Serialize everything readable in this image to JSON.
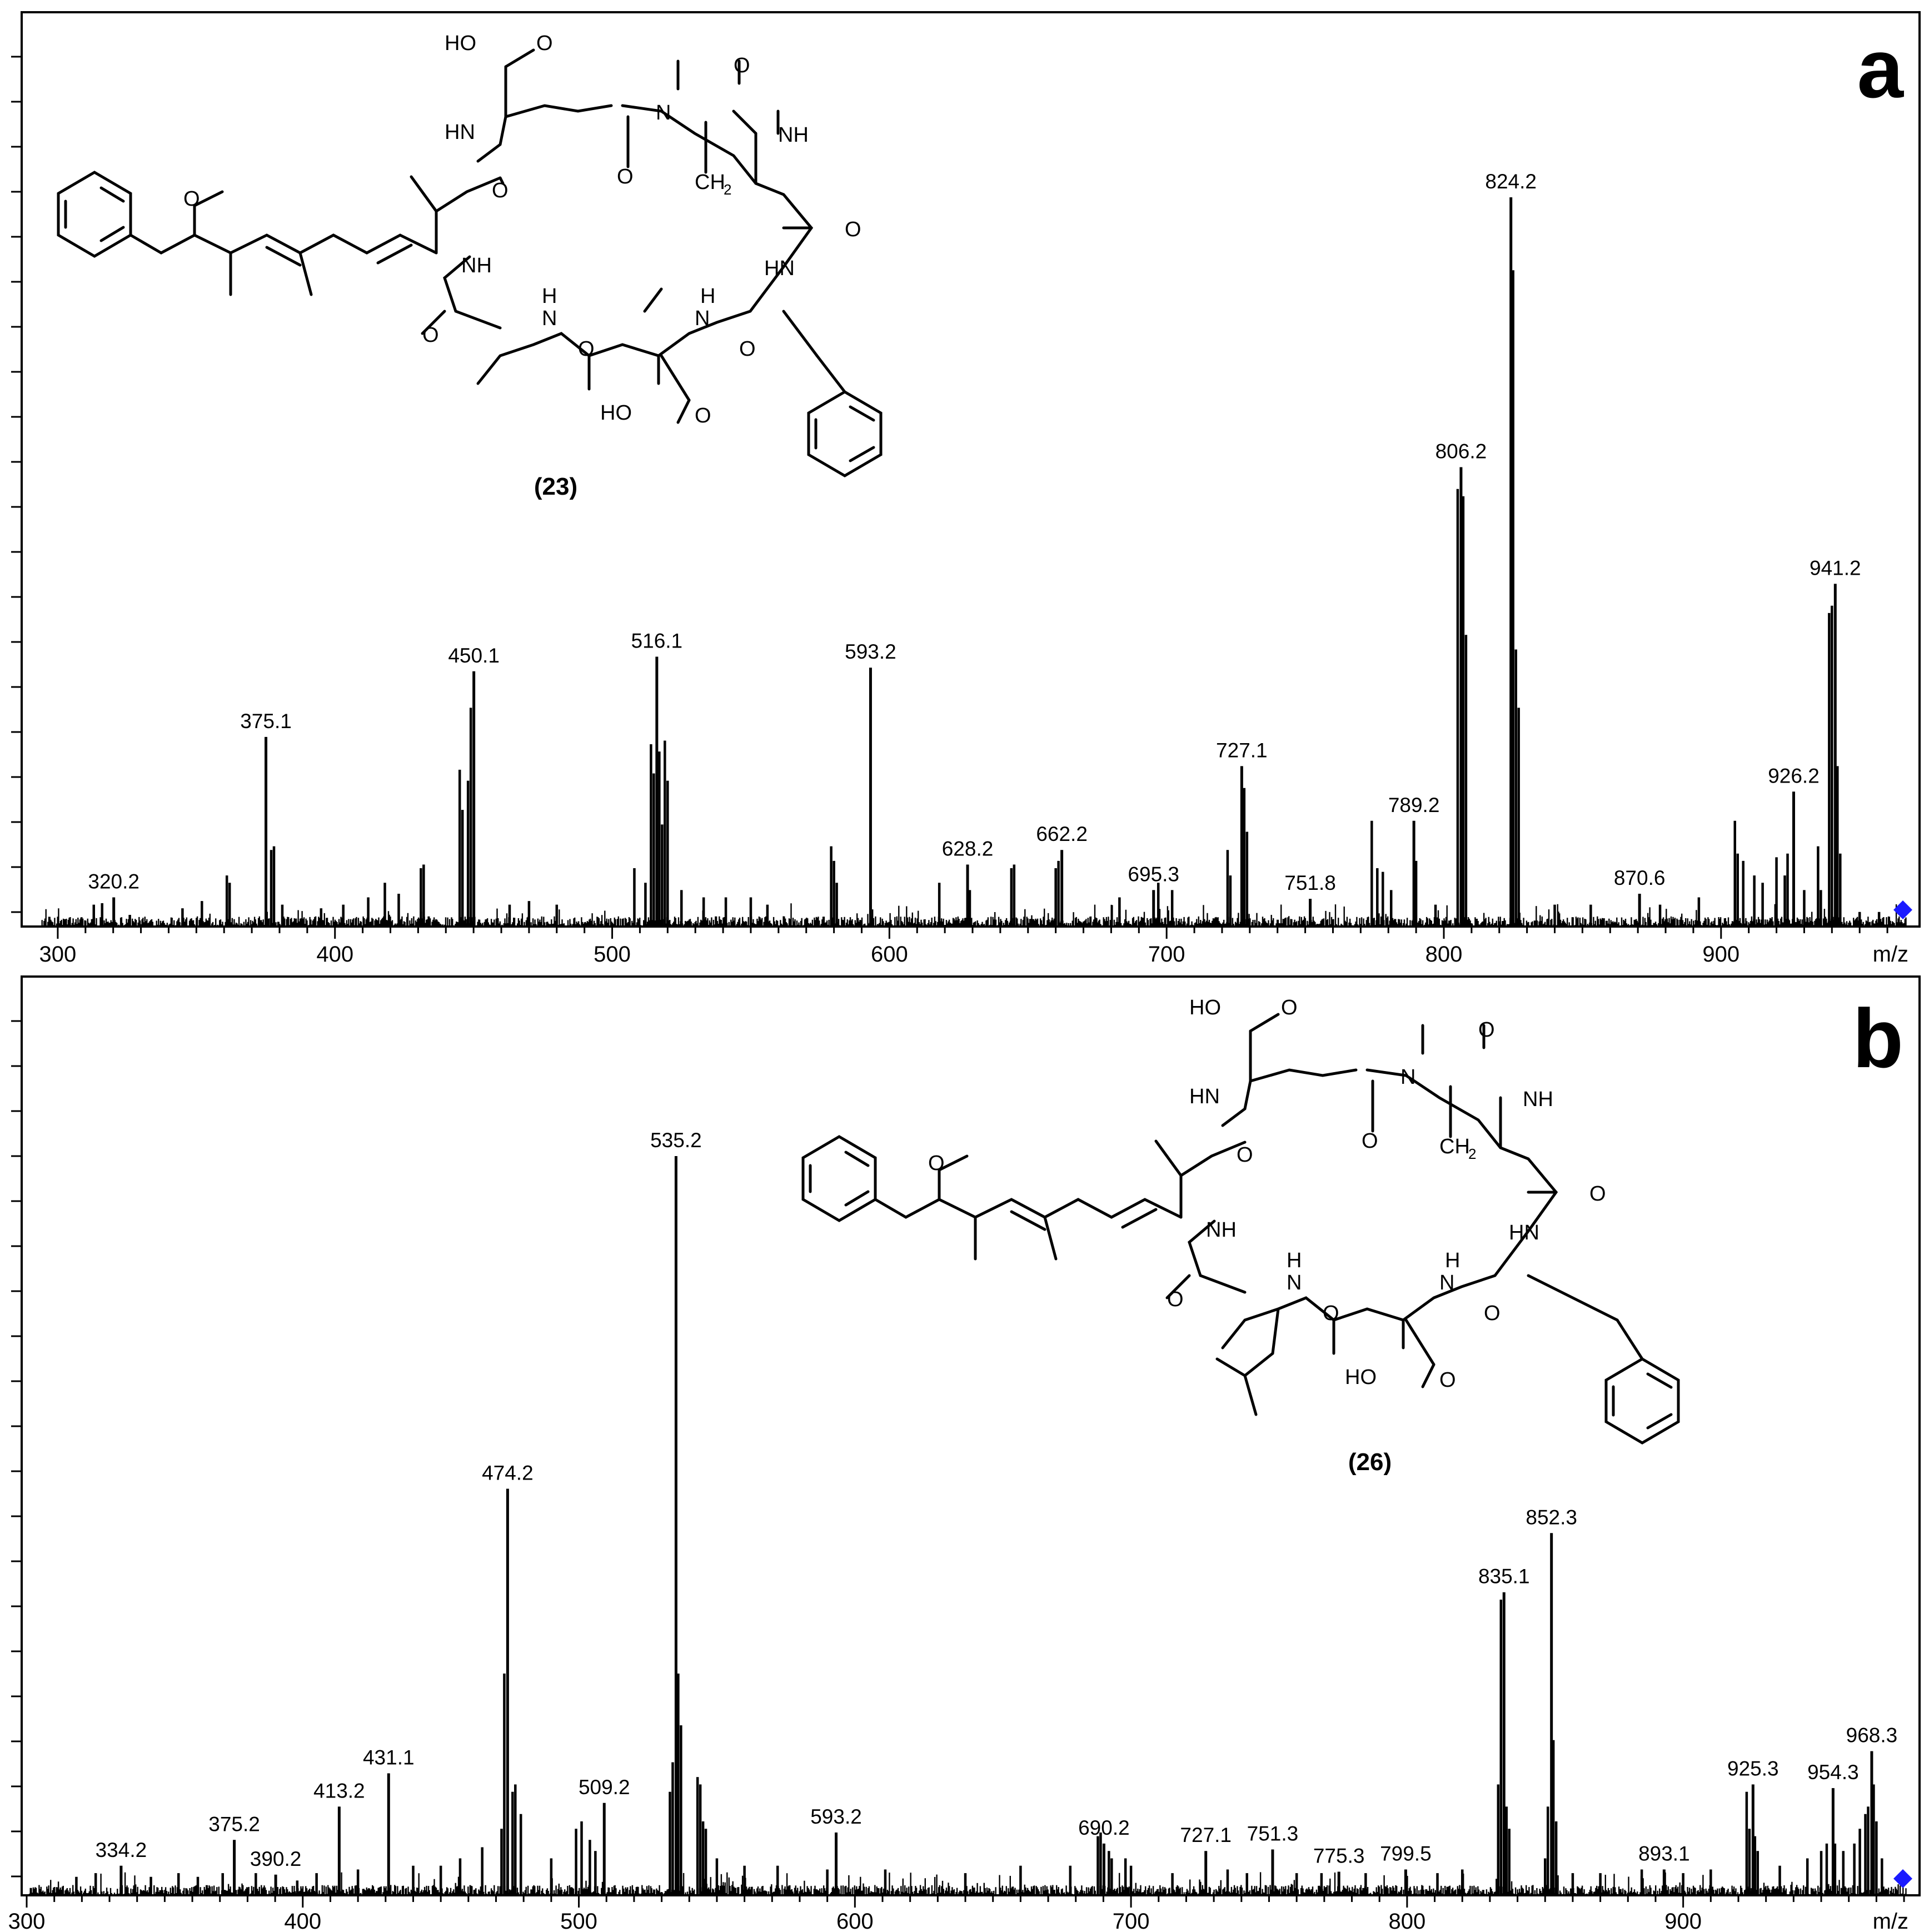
{
  "colors": {
    "frame": "#000000",
    "spectrum": "#000000",
    "marker": "#1a1aff",
    "background": "#ffffff"
  },
  "chart_data": [
    {
      "type": "bar",
      "panel_letter": "a",
      "compound_label": "(23)",
      "xlabel": "m/z",
      "ylabel": "",
      "xlim": [
        293,
        968
      ],
      "ylim": [
        0,
        100
      ],
      "x_ticks": [
        300,
        400,
        500,
        600,
        700,
        800,
        900
      ],
      "grid": false,
      "legend": "none",
      "labeled_peaks": [
        {
          "mz": 320.2,
          "intensity": 4,
          "label": "320.2"
        },
        {
          "mz": 375.1,
          "intensity": 26,
          "label": "375.1"
        },
        {
          "mz": 450.1,
          "intensity": 35,
          "label": "450.1"
        },
        {
          "mz": 516.1,
          "intensity": 37,
          "label": "516.1"
        },
        {
          "mz": 593.2,
          "intensity": 35.5,
          "label": "593.2"
        },
        {
          "mz": 628.2,
          "intensity": 8.5,
          "label": "628.2"
        },
        {
          "mz": 662.2,
          "intensity": 10.5,
          "label": "662.2"
        },
        {
          "mz": 695.3,
          "intensity": 5,
          "label": "695.3"
        },
        {
          "mz": 727.1,
          "intensity": 22,
          "label": "727.1"
        },
        {
          "mz": 751.8,
          "intensity": 3.8,
          "label": "751.8"
        },
        {
          "mz": 789.2,
          "intensity": 14.5,
          "label": "789.2"
        },
        {
          "mz": 806.2,
          "intensity": 63,
          "label": "806.2"
        },
        {
          "mz": 824.2,
          "intensity": 100,
          "label": "824.2"
        },
        {
          "mz": 870.6,
          "intensity": 4.5,
          "label": "870.6"
        },
        {
          "mz": 926.2,
          "intensity": 18.5,
          "label": "926.2"
        },
        {
          "mz": 941.2,
          "intensity": 47,
          "label": "941.2"
        }
      ],
      "other_peaks": [
        [
          313,
          3
        ],
        [
          316,
          3.2
        ],
        [
          326,
          1.6
        ],
        [
          345,
          2.5
        ],
        [
          352,
          3.5
        ],
        [
          361,
          7
        ],
        [
          362,
          6
        ],
        [
          377,
          10.5
        ],
        [
          378,
          11
        ],
        [
          381,
          3
        ],
        [
          395,
          2.5
        ],
        [
          403,
          3
        ],
        [
          412,
          4
        ],
        [
          418,
          6
        ],
        [
          423,
          4.5
        ],
        [
          431,
          8
        ],
        [
          432,
          8.5
        ],
        [
          445,
          21.5
        ],
        [
          446,
          16
        ],
        [
          448,
          20
        ],
        [
          449,
          30
        ],
        [
          463,
          3
        ],
        [
          470,
          3.5
        ],
        [
          480,
          3
        ],
        [
          508,
          8
        ],
        [
          512,
          6
        ],
        [
          514,
          25
        ],
        [
          515,
          21
        ],
        [
          517,
          24
        ],
        [
          518,
          14
        ],
        [
          519,
          25.5
        ],
        [
          520,
          20
        ],
        [
          525,
          5
        ],
        [
          533,
          4
        ],
        [
          541,
          4
        ],
        [
          550,
          4
        ],
        [
          556,
          3
        ],
        [
          579,
          11
        ],
        [
          580,
          9
        ],
        [
          581,
          6
        ],
        [
          618,
          6
        ],
        [
          629,
          5
        ],
        [
          644,
          8
        ],
        [
          645,
          8.5
        ],
        [
          660,
          8
        ],
        [
          661,
          9
        ],
        [
          683,
          4
        ],
        [
          697,
          6
        ],
        [
          702,
          5
        ],
        [
          722,
          10.5
        ],
        [
          723,
          7
        ],
        [
          728,
          19
        ],
        [
          729,
          13
        ],
        [
          774,
          14.5
        ],
        [
          776,
          8
        ],
        [
          778,
          7.5
        ],
        [
          781,
          5
        ],
        [
          790,
          9
        ],
        [
          797,
          3
        ],
        [
          805,
          60
        ],
        [
          807,
          59
        ],
        [
          808,
          40
        ],
        [
          825,
          90
        ],
        [
          826,
          38
        ],
        [
          827,
          30
        ],
        [
          840,
          3
        ],
        [
          853,
          3
        ],
        [
          878,
          3
        ],
        [
          892,
          4
        ],
        [
          905,
          14.5
        ],
        [
          906,
          10
        ],
        [
          908,
          9
        ],
        [
          912,
          7
        ],
        [
          915,
          6
        ],
        [
          920,
          9.5
        ],
        [
          923,
          7
        ],
        [
          924,
          10
        ],
        [
          930,
          5
        ],
        [
          935,
          11
        ],
        [
          936,
          5
        ],
        [
          939,
          43
        ],
        [
          940,
          44
        ],
        [
          942,
          22
        ],
        [
          943,
          10
        ],
        [
          950,
          2
        ],
        [
          957,
          2
        ]
      ]
    },
    {
      "type": "bar",
      "panel_letter": "b",
      "compound_label": "(26)",
      "xlabel": "m/z",
      "ylabel": "",
      "xlim": [
        300,
        982
      ],
      "ylim": [
        0,
        100
      ],
      "x_ticks": [
        300,
        400,
        500,
        600,
        700,
        800,
        900
      ],
      "grid": false,
      "legend": "none",
      "labeled_peaks": [
        {
          "mz": 334.2,
          "intensity": 4,
          "label": "334.2"
        },
        {
          "mz": 375.2,
          "intensity": 7.5,
          "label": "375.2"
        },
        {
          "mz": 390.2,
          "intensity": 2.8,
          "label": "390.2"
        },
        {
          "mz": 413.2,
          "intensity": 12,
          "label": "413.2"
        },
        {
          "mz": 431.1,
          "intensity": 16.5,
          "label": "431.1"
        },
        {
          "mz": 474.2,
          "intensity": 55,
          "label": "474.2"
        },
        {
          "mz": 509.2,
          "intensity": 12.5,
          "label": "509.2"
        },
        {
          "mz": 535.2,
          "intensity": 100,
          "label": "535.2"
        },
        {
          "mz": 593.2,
          "intensity": 8.5,
          "label": "593.2"
        },
        {
          "mz": 690.2,
          "intensity": 7,
          "label": "690.2"
        },
        {
          "mz": 727.1,
          "intensity": 6,
          "label": "727.1"
        },
        {
          "mz": 751.3,
          "intensity": 6.2,
          "label": "751.3"
        },
        {
          "mz": 775.3,
          "intensity": 3.2,
          "label": "775.3"
        },
        {
          "mz": 799.5,
          "intensity": 3.5,
          "label": "799.5"
        },
        {
          "mz": 835.1,
          "intensity": 41,
          "label": "835.1"
        },
        {
          "mz": 852.3,
          "intensity": 49,
          "label": "852.3"
        },
        {
          "mz": 893.1,
          "intensity": 3.5,
          "label": "893.1"
        },
        {
          "mz": 925.3,
          "intensity": 15,
          "label": "925.3"
        },
        {
          "mz": 954.3,
          "intensity": 14.5,
          "label": "954.3"
        },
        {
          "mz": 968.3,
          "intensity": 19.5,
          "label": "968.3"
        }
      ],
      "other_peaks": [
        [
          318,
          2.5
        ],
        [
          325,
          3
        ],
        [
          345,
          2.5
        ],
        [
          355,
          3
        ],
        [
          362,
          2.5
        ],
        [
          371,
          3
        ],
        [
          383,
          3
        ],
        [
          398,
          2
        ],
        [
          405,
          3
        ],
        [
          420,
          3.5
        ],
        [
          440,
          4
        ],
        [
          450,
          4
        ],
        [
          457,
          5
        ],
        [
          465,
          6.5
        ],
        [
          472,
          9
        ],
        [
          473,
          30
        ],
        [
          476,
          14
        ],
        [
          477,
          15
        ],
        [
          479,
          11
        ],
        [
          490,
          5
        ],
        [
          499,
          9
        ],
        [
          501,
          10
        ],
        [
          504,
          7.5
        ],
        [
          506,
          6
        ],
        [
          533,
          14
        ],
        [
          534,
          18
        ],
        [
          536,
          30
        ],
        [
          537,
          23
        ],
        [
          543,
          16
        ],
        [
          544,
          15
        ],
        [
          545,
          10
        ],
        [
          546,
          9
        ],
        [
          550,
          5
        ],
        [
          560,
          4
        ],
        [
          572,
          4
        ],
        [
          590,
          3.5
        ],
        [
          611,
          3.5
        ],
        [
          640,
          3
        ],
        [
          660,
          4
        ],
        [
          678,
          4
        ],
        [
          688,
          8
        ],
        [
          689,
          8.5
        ],
        [
          692,
          6
        ],
        [
          693,
          5
        ],
        [
          698,
          5
        ],
        [
          700,
          4
        ],
        [
          715,
          3
        ],
        [
          735,
          3.5
        ],
        [
          742,
          3
        ],
        [
          760,
          3
        ],
        [
          769,
          3
        ],
        [
          785,
          3
        ],
        [
          811,
          3
        ],
        [
          820,
          3.5
        ],
        [
          833,
          15
        ],
        [
          834,
          40
        ],
        [
          836,
          12
        ],
        [
          837,
          9
        ],
        [
          850,
          5
        ],
        [
          851,
          12
        ],
        [
          853,
          21
        ],
        [
          854,
          10
        ],
        [
          860,
          3
        ],
        [
          870,
          3
        ],
        [
          885,
          3.5
        ],
        [
          900,
          3
        ],
        [
          910,
          3.5
        ],
        [
          923,
          14
        ],
        [
          924,
          9
        ],
        [
          926,
          8
        ],
        [
          927,
          6
        ],
        [
          935,
          4
        ],
        [
          945,
          5
        ],
        [
          950,
          6
        ],
        [
          952,
          7
        ],
        [
          955,
          7
        ],
        [
          958,
          6
        ],
        [
          962,
          7
        ],
        [
          964,
          9
        ],
        [
          966,
          11
        ],
        [
          967,
          12
        ],
        [
          969,
          15
        ],
        [
          970,
          10
        ],
        [
          972,
          5
        ]
      ]
    }
  ]
}
